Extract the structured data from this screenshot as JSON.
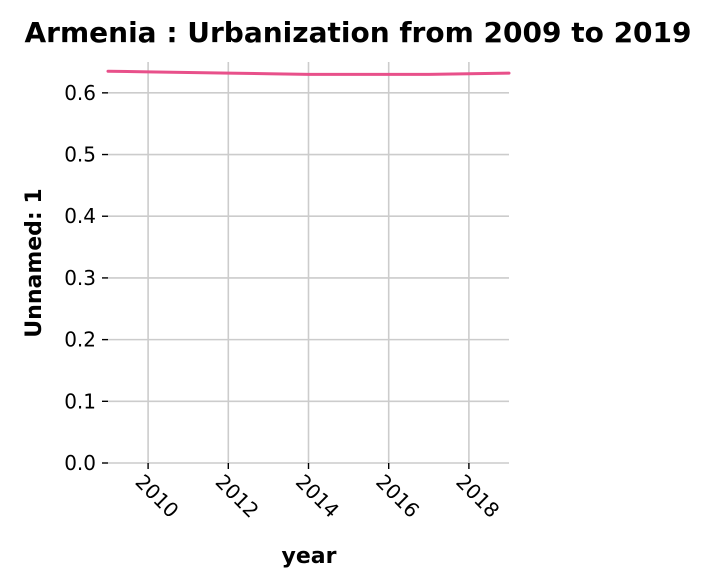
{
  "chart_data": {
    "type": "line",
    "title": "Armenia : Urbanization from 2009 to 2019",
    "xlabel": "year",
    "ylabel": "Unnamed: 1",
    "xlim": [
      2009,
      2019
    ],
    "ylim": [
      0,
      0.65
    ],
    "x_ticks": [
      2010,
      2012,
      2014,
      2016,
      2018
    ],
    "y_ticks": [
      0.0,
      0.1,
      0.2,
      0.3,
      0.4,
      0.5,
      0.6
    ],
    "y_tick_labels": [
      "0.0",
      "0.1",
      "0.2",
      "0.3",
      "0.4",
      "0.5",
      "0.6"
    ],
    "grid": true,
    "series": [
      {
        "color": "#e8508a",
        "x": [
          2009,
          2010,
          2011,
          2012,
          2013,
          2014,
          2015,
          2016,
          2017,
          2018,
          2019
        ],
        "y": [
          0.635,
          0.634,
          0.633,
          0.632,
          0.631,
          0.63,
          0.63,
          0.63,
          0.63,
          0.631,
          0.632
        ]
      }
    ]
  }
}
